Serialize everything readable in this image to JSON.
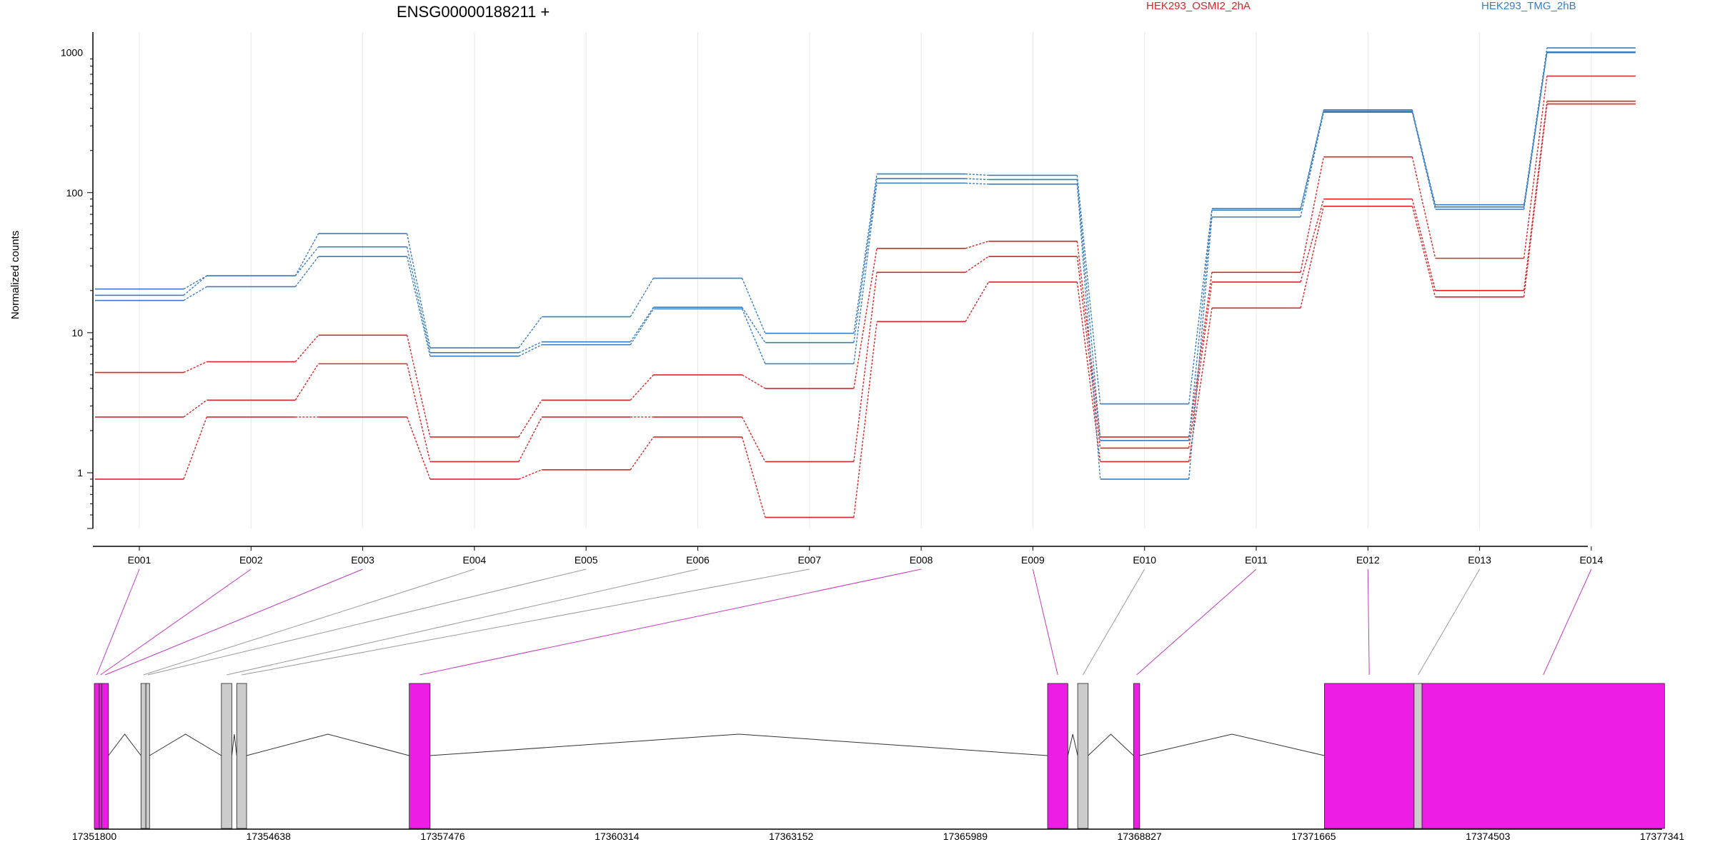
{
  "chart_data": {
    "type": "line",
    "title": "ENSG00000188211 +",
    "ylabel": "Normalized counts",
    "xlabel": "",
    "y_scale": "log",
    "ylim": [
      0.4,
      1400
    ],
    "y_ticks": [
      "1",
      "10",
      "100",
      "1000"
    ],
    "categories": [
      "E001",
      "E002",
      "E003",
      "E004",
      "E005",
      "E006",
      "E007",
      "E008",
      "E009",
      "E010",
      "E011",
      "E012",
      "E013",
      "E014"
    ],
    "legend": [
      {
        "name": "HEK293_OSMI2_2hA",
        "color": "#d62728"
      },
      {
        "name": "HEK293_TMG_2hB",
        "color": "#3a7dbf"
      }
    ],
    "series": [
      {
        "group": "HEK293_OSMI2_2hA",
        "color": "#d62728",
        "values": [
          5.2,
          6.2,
          9.6,
          1.8,
          3.3,
          5.0,
          4.0,
          40,
          45,
          1.8,
          27,
          180,
          34,
          680
        ]
      },
      {
        "group": "HEK293_OSMI2_2hA",
        "color": "#d62728",
        "values": [
          2.5,
          3.3,
          6.0,
          1.2,
          2.5,
          2.5,
          1.2,
          27,
          35,
          1.5,
          23,
          90,
          20,
          450
        ]
      },
      {
        "group": "HEK293_OSMI2_2hA",
        "color": "#d62728",
        "values": [
          0.9,
          2.5,
          2.5,
          0.9,
          1.05,
          1.8,
          0.48,
          12,
          23,
          1.2,
          15,
          80,
          18,
          430
        ]
      },
      {
        "group": "HEK293_TMG_2hB",
        "color": "#3a7dbf",
        "values": [
          20.5,
          25.5,
          51,
          7.8,
          13,
          24.5,
          9.9,
          136,
          133,
          3.1,
          77,
          390,
          82,
          1080
        ]
      },
      {
        "group": "HEK293_TMG_2hB",
        "color": "#3a7dbf",
        "values": [
          18.5,
          25.5,
          41,
          7.2,
          8.6,
          15.2,
          8.5,
          126,
          124,
          1.7,
          75,
          382,
          79,
          1010
        ]
      },
      {
        "group": "HEK293_TMG_2hB",
        "color": "#3a7dbf",
        "values": [
          17,
          21.3,
          35,
          6.8,
          8.2,
          14.8,
          6.0,
          117,
          115,
          0.9,
          67,
          375,
          76,
          1000
        ]
      }
    ],
    "gene_model": {
      "coordinate_labels": [
        "17351800",
        "17354638",
        "17357476",
        "17360314",
        "17363152",
        "17365989",
        "17368827",
        "17371665",
        "17374503",
        "17377341"
      ],
      "exon_colors": {
        "tested": "#ee1de6",
        "not_tested": "#cccccc"
      },
      "exons": [
        {
          "start": 17351800,
          "end": 17351880,
          "highlight": true
        },
        {
          "start": 17351880,
          "end": 17351920,
          "highlight": true
        },
        {
          "start": 17351920,
          "end": 17352030,
          "highlight": true
        },
        {
          "start": 17352560,
          "end": 17352640,
          "highlight": false
        },
        {
          "start": 17352640,
          "end": 17352700,
          "highlight": false
        },
        {
          "start": 17353870,
          "end": 17354040,
          "highlight": false
        },
        {
          "start": 17354120,
          "end": 17354280,
          "highlight": false
        },
        {
          "start": 17356930,
          "end": 17357270,
          "highlight": true
        },
        {
          "start": 17367330,
          "end": 17367660,
          "highlight": true
        },
        {
          "start": 17367820,
          "end": 17367990,
          "highlight": false
        },
        {
          "start": 17368730,
          "end": 17368830,
          "highlight": true
        },
        {
          "start": 17371840,
          "end": 17373300,
          "highlight": true
        },
        {
          "start": 17373300,
          "end": 17373430,
          "highlight": false
        },
        {
          "start": 17373430,
          "end": 17377380,
          "highlight": true
        }
      ],
      "exon_bin_links": [
        {
          "bin": "E001",
          "exon": 0,
          "highlight": true
        },
        {
          "bin": "E002",
          "exon": 1,
          "highlight": true
        },
        {
          "bin": "E003",
          "exon": 2,
          "highlight": true
        },
        {
          "bin": "E004",
          "exon": 3,
          "highlight": false
        },
        {
          "bin": "E005",
          "exon": 4,
          "highlight": false
        },
        {
          "bin": "E006",
          "exon": 5,
          "highlight": false
        },
        {
          "bin": "E007",
          "exon": 6,
          "highlight": false
        },
        {
          "bin": "E008",
          "exon": 7,
          "highlight": true
        },
        {
          "bin": "E009",
          "exon": 8,
          "highlight": true
        },
        {
          "bin": "E010",
          "exon": 9,
          "highlight": false
        },
        {
          "bin": "E011",
          "exon": 10,
          "highlight": true
        },
        {
          "bin": "E012",
          "exon": 11,
          "highlight": true
        },
        {
          "bin": "E013",
          "exon": 12,
          "highlight": false
        },
        {
          "bin": "E014",
          "exon": 13,
          "highlight": true
        }
      ]
    }
  }
}
